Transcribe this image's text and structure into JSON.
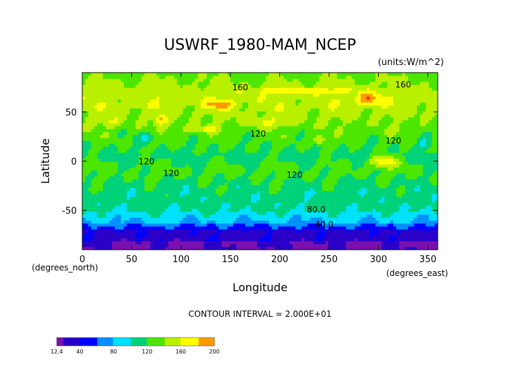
{
  "chart_data": {
    "type": "heatmap",
    "title": "USWRF_1980-MAM_NCEP",
    "units": "(units:W/m^2)",
    "xlabel": "Longitude",
    "ylabel": "Latitude",
    "x_units": "(degrees_east)",
    "y_units": "(degrees_north)",
    "xlim": [
      0,
      360
    ],
    "ylim": [
      -90,
      90
    ],
    "x_ticks": [
      0,
      50,
      100,
      150,
      200,
      250,
      300,
      350
    ],
    "y_ticks": [
      -50,
      0,
      50
    ],
    "contour_interval_text": "CONTOUR INTERVAL = 2.000E+01",
    "contour_labels": [
      {
        "text": "160",
        "lon": 160,
        "lat": 72
      },
      {
        "text": "160",
        "lon": 325,
        "lat": 75
      },
      {
        "text": "120",
        "lon": 178,
        "lat": 25
      },
      {
        "text": "120",
        "lon": 315,
        "lat": 18
      },
      {
        "text": "120",
        "lon": 65,
        "lat": -3
      },
      {
        "text": "120",
        "lon": 90,
        "lat": -15
      },
      {
        "text": "120",
        "lon": 215,
        "lat": -17
      },
      {
        "text": "80.0",
        "lon": 237,
        "lat": -52
      },
      {
        "text": "40.0",
        "lon": 245,
        "lat": -67
      }
    ],
    "colorbar": {
      "ticks": [
        "12.4",
        "40",
        "80",
        "120",
        "160",
        "200"
      ],
      "min": 12.4,
      "max": 200
    },
    "levels": [
      0,
      20,
      40,
      60,
      80,
      100,
      120,
      140,
      160,
      180,
      200
    ],
    "colors": [
      "#7a10b0",
      "#2a00c8",
      "#0000ff",
      "#0090ff",
      "#00e0ff",
      "#00d27a",
      "#4ce600",
      "#b8f000",
      "#ffff00",
      "#ff9900",
      "#ff2200"
    ]
  }
}
